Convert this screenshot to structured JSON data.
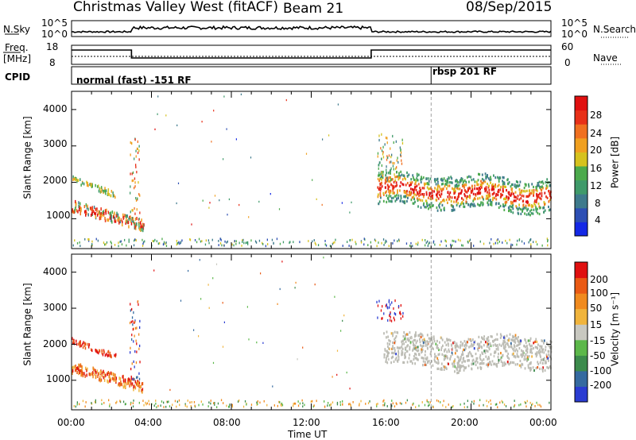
{
  "header": {
    "station": "Christmas Valley West (fitACF)",
    "beam": "Beam 21",
    "date": "08/Sep/2015"
  },
  "strips": {
    "nsky_label": "N.Sky",
    "nsearch_label": "N.Search",
    "freq_label": "Freq.",
    "freq_unit": "[MHz]",
    "nave_label": "Nave",
    "cpid_label": "CPID",
    "nsky_ticks": [
      "10^5",
      "10^0"
    ],
    "nsearch_ticks": [
      "10^5",
      "10^0"
    ],
    "freq_ticks": [
      "18",
      "8"
    ],
    "nave_ticks": [
      "60",
      "0"
    ],
    "cpid_left": "normal (fast) -151 RF",
    "cpid_right": "rbsp 201 RF"
  },
  "colors": {
    "power_scale": [
      "#1428e6",
      "#2d4fb4",
      "#3e7a8c",
      "#3f9a6a",
      "#4caa4c",
      "#d6c21e",
      "#f0a020",
      "#f07020",
      "#e83018",
      "#e01010"
    ],
    "velocity_scale": [
      "#2a3cd2",
      "#356aa0",
      "#3c8b4c",
      "#5cb84a",
      "#c8c8c0",
      "#f0b43c",
      "#f08a1e",
      "#ea5a14",
      "#e01010"
    ],
    "ground_scatter": "#bcbcb4"
  },
  "chart_data": [
    {
      "type": "heatmap",
      "ylabel": "Slant Range [km]",
      "ylim": [
        180,
        4500
      ],
      "y_ticks": [
        1000,
        2000,
        3000,
        4000
      ],
      "x_ticks": [
        "00:00",
        "04:00",
        "08:00",
        "12:00",
        "16:00",
        "20:00",
        "00:00"
      ],
      "colorbar_label": "Power [dB]",
      "colorbar_ticks": [
        "28",
        "24",
        "20",
        "16",
        "12",
        "8",
        "4"
      ]
    },
    {
      "type": "heatmap",
      "ylabel": "Slant Range [km]",
      "ylim": [
        180,
        4500
      ],
      "y_ticks": [
        1000,
        2000,
        3000,
        4000
      ],
      "x_ticks": [
        "00:00",
        "04:00",
        "08:00",
        "12:00",
        "16:00",
        "20:00",
        "00:00"
      ],
      "xlabel": "Time UT",
      "colorbar_label": "Velocity [m s⁻¹]",
      "colorbar_ticks": [
        "200",
        "100",
        "50",
        "15",
        "-15",
        "-50",
        "-100",
        "-200"
      ]
    }
  ]
}
